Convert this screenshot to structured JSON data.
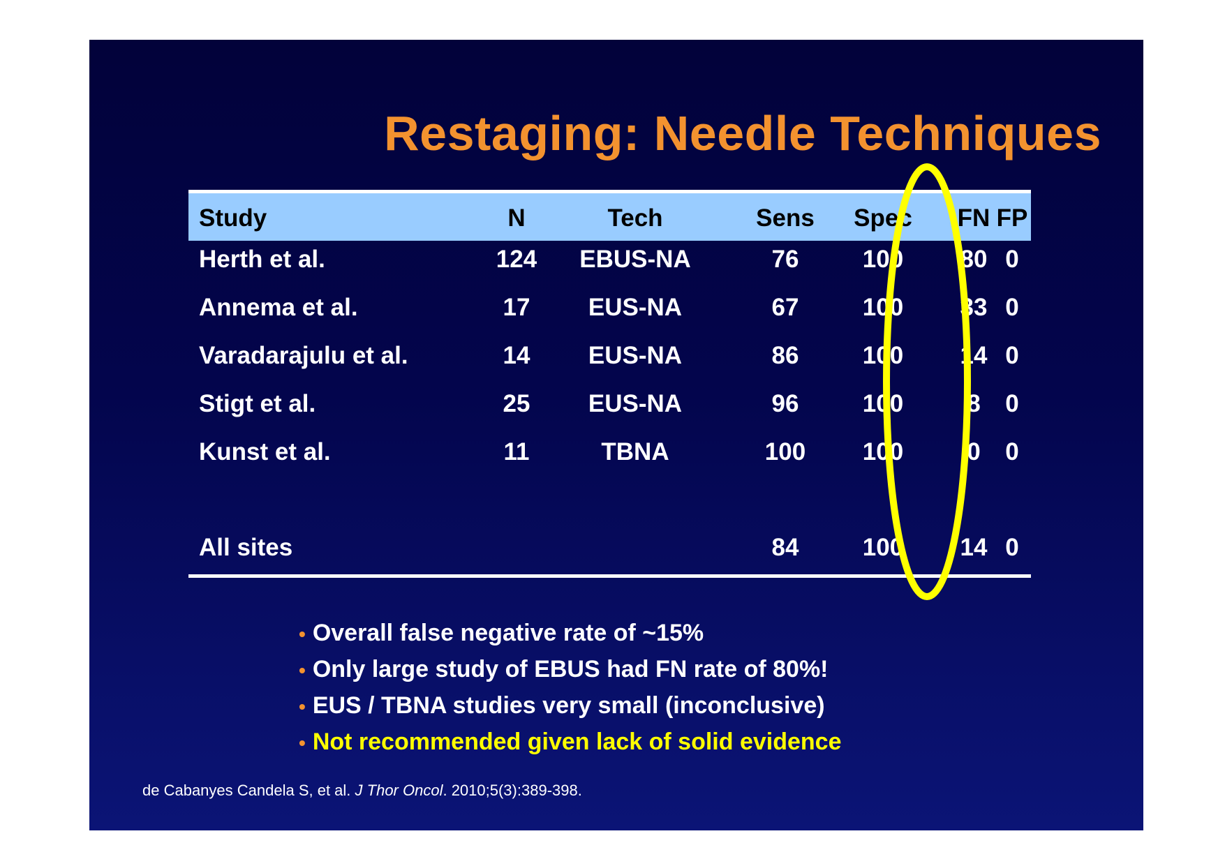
{
  "title": "Restaging: Needle Techniques",
  "table": {
    "headers": {
      "study": "Study",
      "n": "N",
      "tech": "Tech",
      "sens": "Sens",
      "spec": "Spec",
      "fn": "FN",
      "fp": "FP"
    },
    "rows": [
      {
        "study": "Herth et al.",
        "n": "124",
        "tech": "EBUS-NA",
        "sens": "76",
        "spec": "100",
        "fn": "80",
        "fp": "0"
      },
      {
        "study": "Annema et al.",
        "n": "17",
        "tech": "EUS-NA",
        "sens": "67",
        "spec": "100",
        "fn": "33",
        "fp": "0"
      },
      {
        "study": "Varadarajulu et al.",
        "n": "14",
        "tech": "EUS-NA",
        "sens": "86",
        "spec": "100",
        "fn": "14",
        "fp": "0"
      },
      {
        "study": "Stigt et al.",
        "n": "25",
        "tech": "EUS-NA",
        "sens": "96",
        "spec": "100",
        "fn": "8",
        "fp": "0"
      },
      {
        "study": "Kunst et al.",
        "n": "11",
        "tech": "TBNA",
        "sens": "100",
        "spec": "100",
        "fn": "0",
        "fp": "0"
      }
    ],
    "total": {
      "study": "All sites",
      "sens": "84",
      "spec": "100",
      "fn": "14",
      "fp": "0"
    }
  },
  "bullets": [
    "Overall false negative rate of ~15%",
    "Only large study of EBUS had FN rate of 80%!",
    "EUS / TBNA studies very small (inconclusive)",
    "Not recommended given lack of solid evidence"
  ],
  "bullet_marker": "•",
  "citation": {
    "authors": "de Cabanyes Candela S, et al. ",
    "journal": "J Thor Oncol",
    "details": ". 2010;5(3):389-398."
  },
  "colors": {
    "title": "#f3922f",
    "header_band": "#99ccff",
    "highlight": "#ffff00",
    "oval": "#ffff00",
    "background": "#03054d"
  }
}
